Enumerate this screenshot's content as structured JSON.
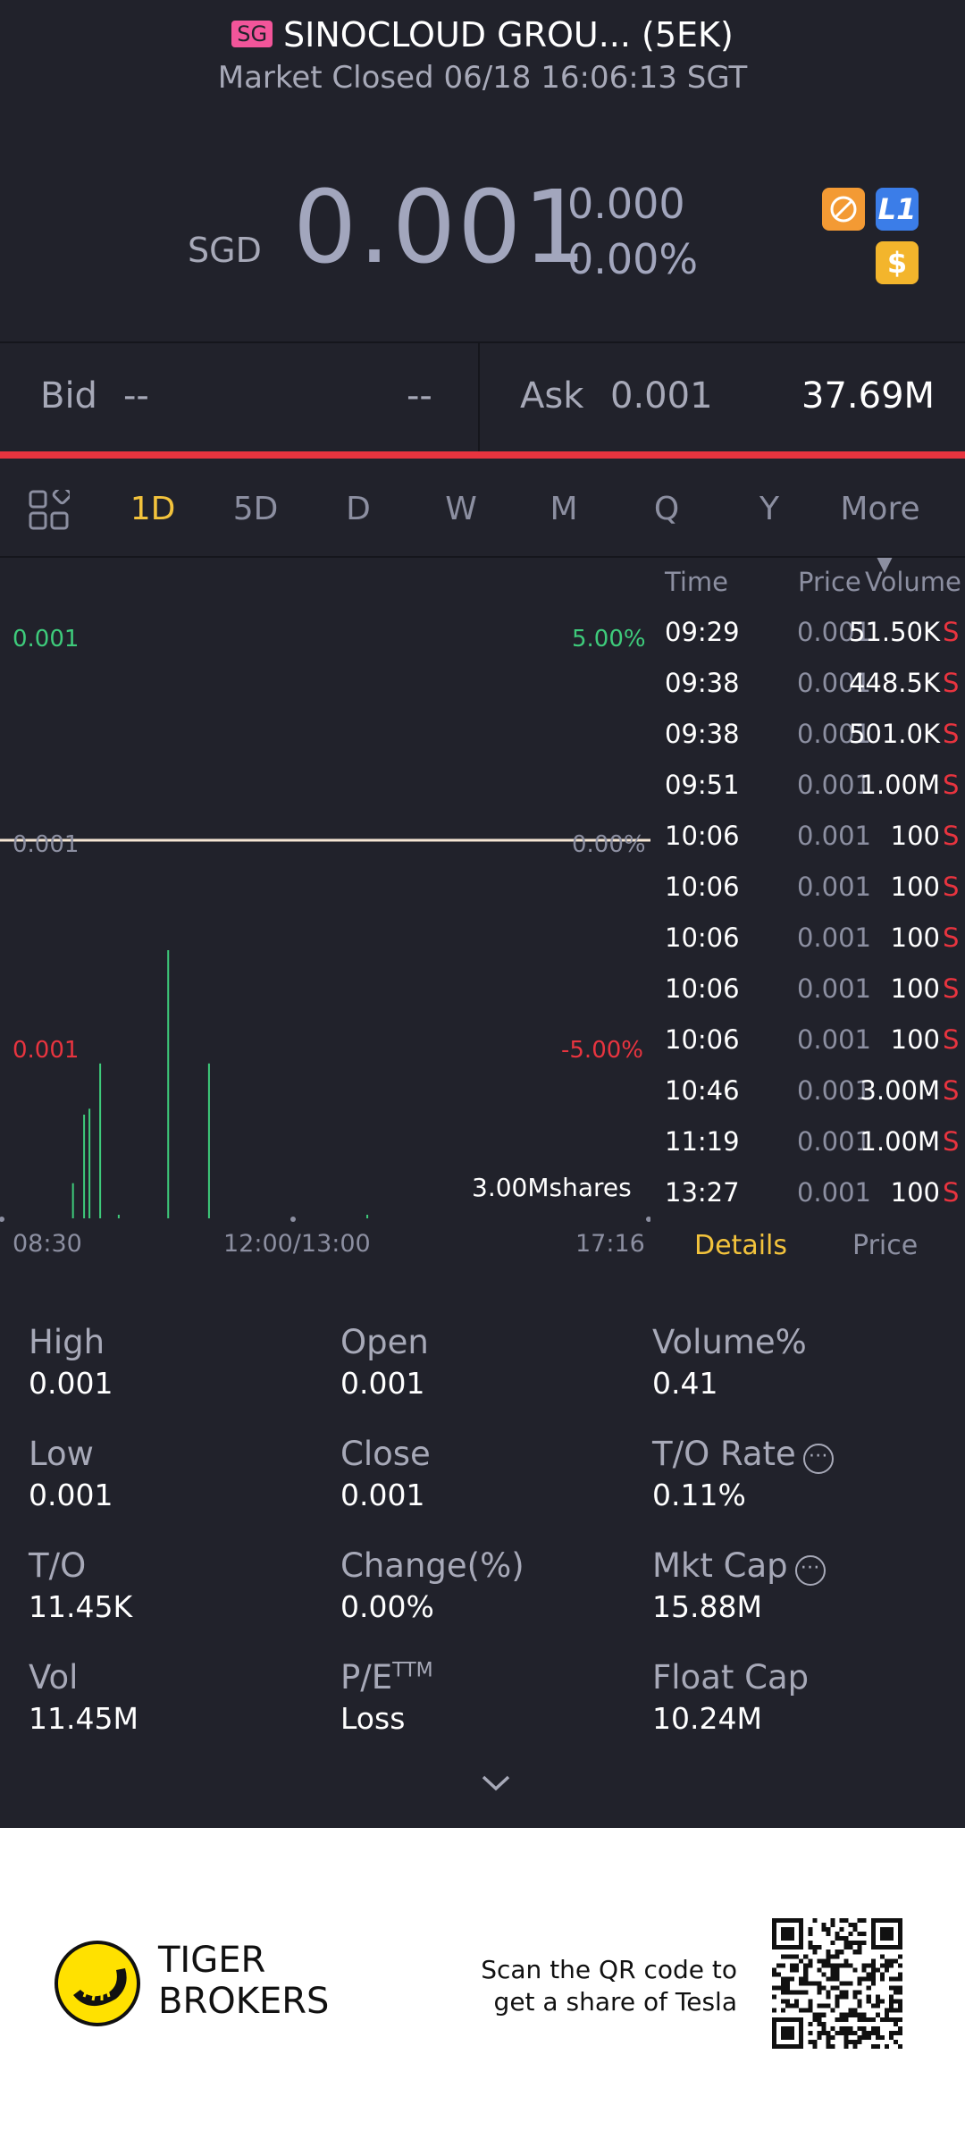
{
  "header": {
    "market_badge": "SG",
    "title": "SINOCLOUD GROU... (5EK)",
    "status": "Market Closed 06/18 16:06:13 SGT"
  },
  "quote": {
    "currency": "SGD",
    "price": "0.001",
    "change": "0.000",
    "change_pct": "0.00%",
    "level_badge": "L1",
    "dollar_badge": "$"
  },
  "bid_ask": {
    "bid_label": "Bid",
    "bid_price": "--",
    "bid_size": "--",
    "ask_label": "Ask",
    "ask_price": "0.001",
    "ask_size": "37.69M"
  },
  "tabs": [
    "1D",
    "5D",
    "D",
    "W",
    "M",
    "Q",
    "Y",
    "More"
  ],
  "active_tab": "1D",
  "chart": {
    "top_price": "0.001",
    "top_pct": "5.00%",
    "mid_price": "0.001",
    "mid_pct": "0.00%",
    "bottom_price": "0.001",
    "bottom_pct": "-5.00%",
    "volume_label": "3.00Mshares",
    "x_ticks": [
      "08:30",
      "12:00/13:00",
      "17:16"
    ]
  },
  "chart_data": {
    "type": "line",
    "series": [
      {
        "values": [
          0.001,
          0.001
        ]
      }
    ],
    "x": [
      "08:30",
      "17:16"
    ],
    "ylim": [
      0.00095,
      0.00105
    ],
    "volume_bars": [
      {
        "x": "09:29",
        "value": 51500
      },
      {
        "x": "09:38",
        "value": 448500
      },
      {
        "x": "09:38",
        "value": 501000
      },
      {
        "x": "09:51",
        "value": 1000000
      },
      {
        "x": "10:06",
        "value": 100
      },
      {
        "x": "10:46",
        "value": 3000000
      },
      {
        "x": "11:19",
        "value": 1000000
      },
      {
        "x": "13:27",
        "value": 100
      }
    ]
  },
  "ticks_table": {
    "headers": {
      "time": "Time",
      "price": "Price",
      "volume": "Volume"
    },
    "rows": [
      {
        "time": "09:29",
        "price": "0.001",
        "volume": "51.50K",
        "side": "S"
      },
      {
        "time": "09:38",
        "price": "0.001",
        "volume": "448.5K",
        "side": "S"
      },
      {
        "time": "09:38",
        "price": "0.001",
        "volume": "501.0K",
        "side": "S"
      },
      {
        "time": "09:51",
        "price": "0.001",
        "volume": "1.00M",
        "side": "S"
      },
      {
        "time": "10:06",
        "price": "0.001",
        "volume": "100",
        "side": "S"
      },
      {
        "time": "10:06",
        "price": "0.001",
        "volume": "100",
        "side": "S"
      },
      {
        "time": "10:06",
        "price": "0.001",
        "volume": "100",
        "side": "S"
      },
      {
        "time": "10:06",
        "price": "0.001",
        "volume": "100",
        "side": "S"
      },
      {
        "time": "10:06",
        "price": "0.001",
        "volume": "100",
        "side": "S"
      },
      {
        "time": "10:46",
        "price": "0.001",
        "volume": "3.00M",
        "side": "S"
      },
      {
        "time": "11:19",
        "price": "0.001",
        "volume": "1.00M",
        "side": "S"
      },
      {
        "time": "13:27",
        "price": "0.001",
        "volume": "100",
        "side": "S"
      }
    ],
    "tab_details": "Details",
    "tab_price": "Price"
  },
  "stats": [
    {
      "label": "High",
      "value": "0.001"
    },
    {
      "label": "Open",
      "value": "0.001"
    },
    {
      "label": "Volume%",
      "value": "0.41"
    },
    {
      "label": "Low",
      "value": "0.001"
    },
    {
      "label": "Close",
      "value": "0.001"
    },
    {
      "label": "T/O Rate",
      "value": "0.11%"
    },
    {
      "label": "T/O",
      "value": "11.45K"
    },
    {
      "label": "Change(%)",
      "value": "0.00%"
    },
    {
      "label": "Mkt Cap",
      "value": "15.88M"
    },
    {
      "label": "Vol",
      "value": "11.45M"
    },
    {
      "label": "P/E",
      "value": "Loss"
    },
    {
      "label": "Float Cap",
      "value": "10.24M"
    }
  ],
  "pe_superscript": "TTM",
  "footer": {
    "brand_line1": "TIGER",
    "brand_line2": "BROKERS",
    "promo_line1": "Scan the QR code to",
    "promo_line2": "get a share of Tesla"
  },
  "colors": {
    "background": "#21222b",
    "accent_yellow": "#f3c33c",
    "up_green": "#3ecb7b",
    "down_red": "#e8343f",
    "badge_pink": "#f2559a",
    "badge_orange": "#f39a34",
    "badge_blue": "#3b7de8"
  }
}
